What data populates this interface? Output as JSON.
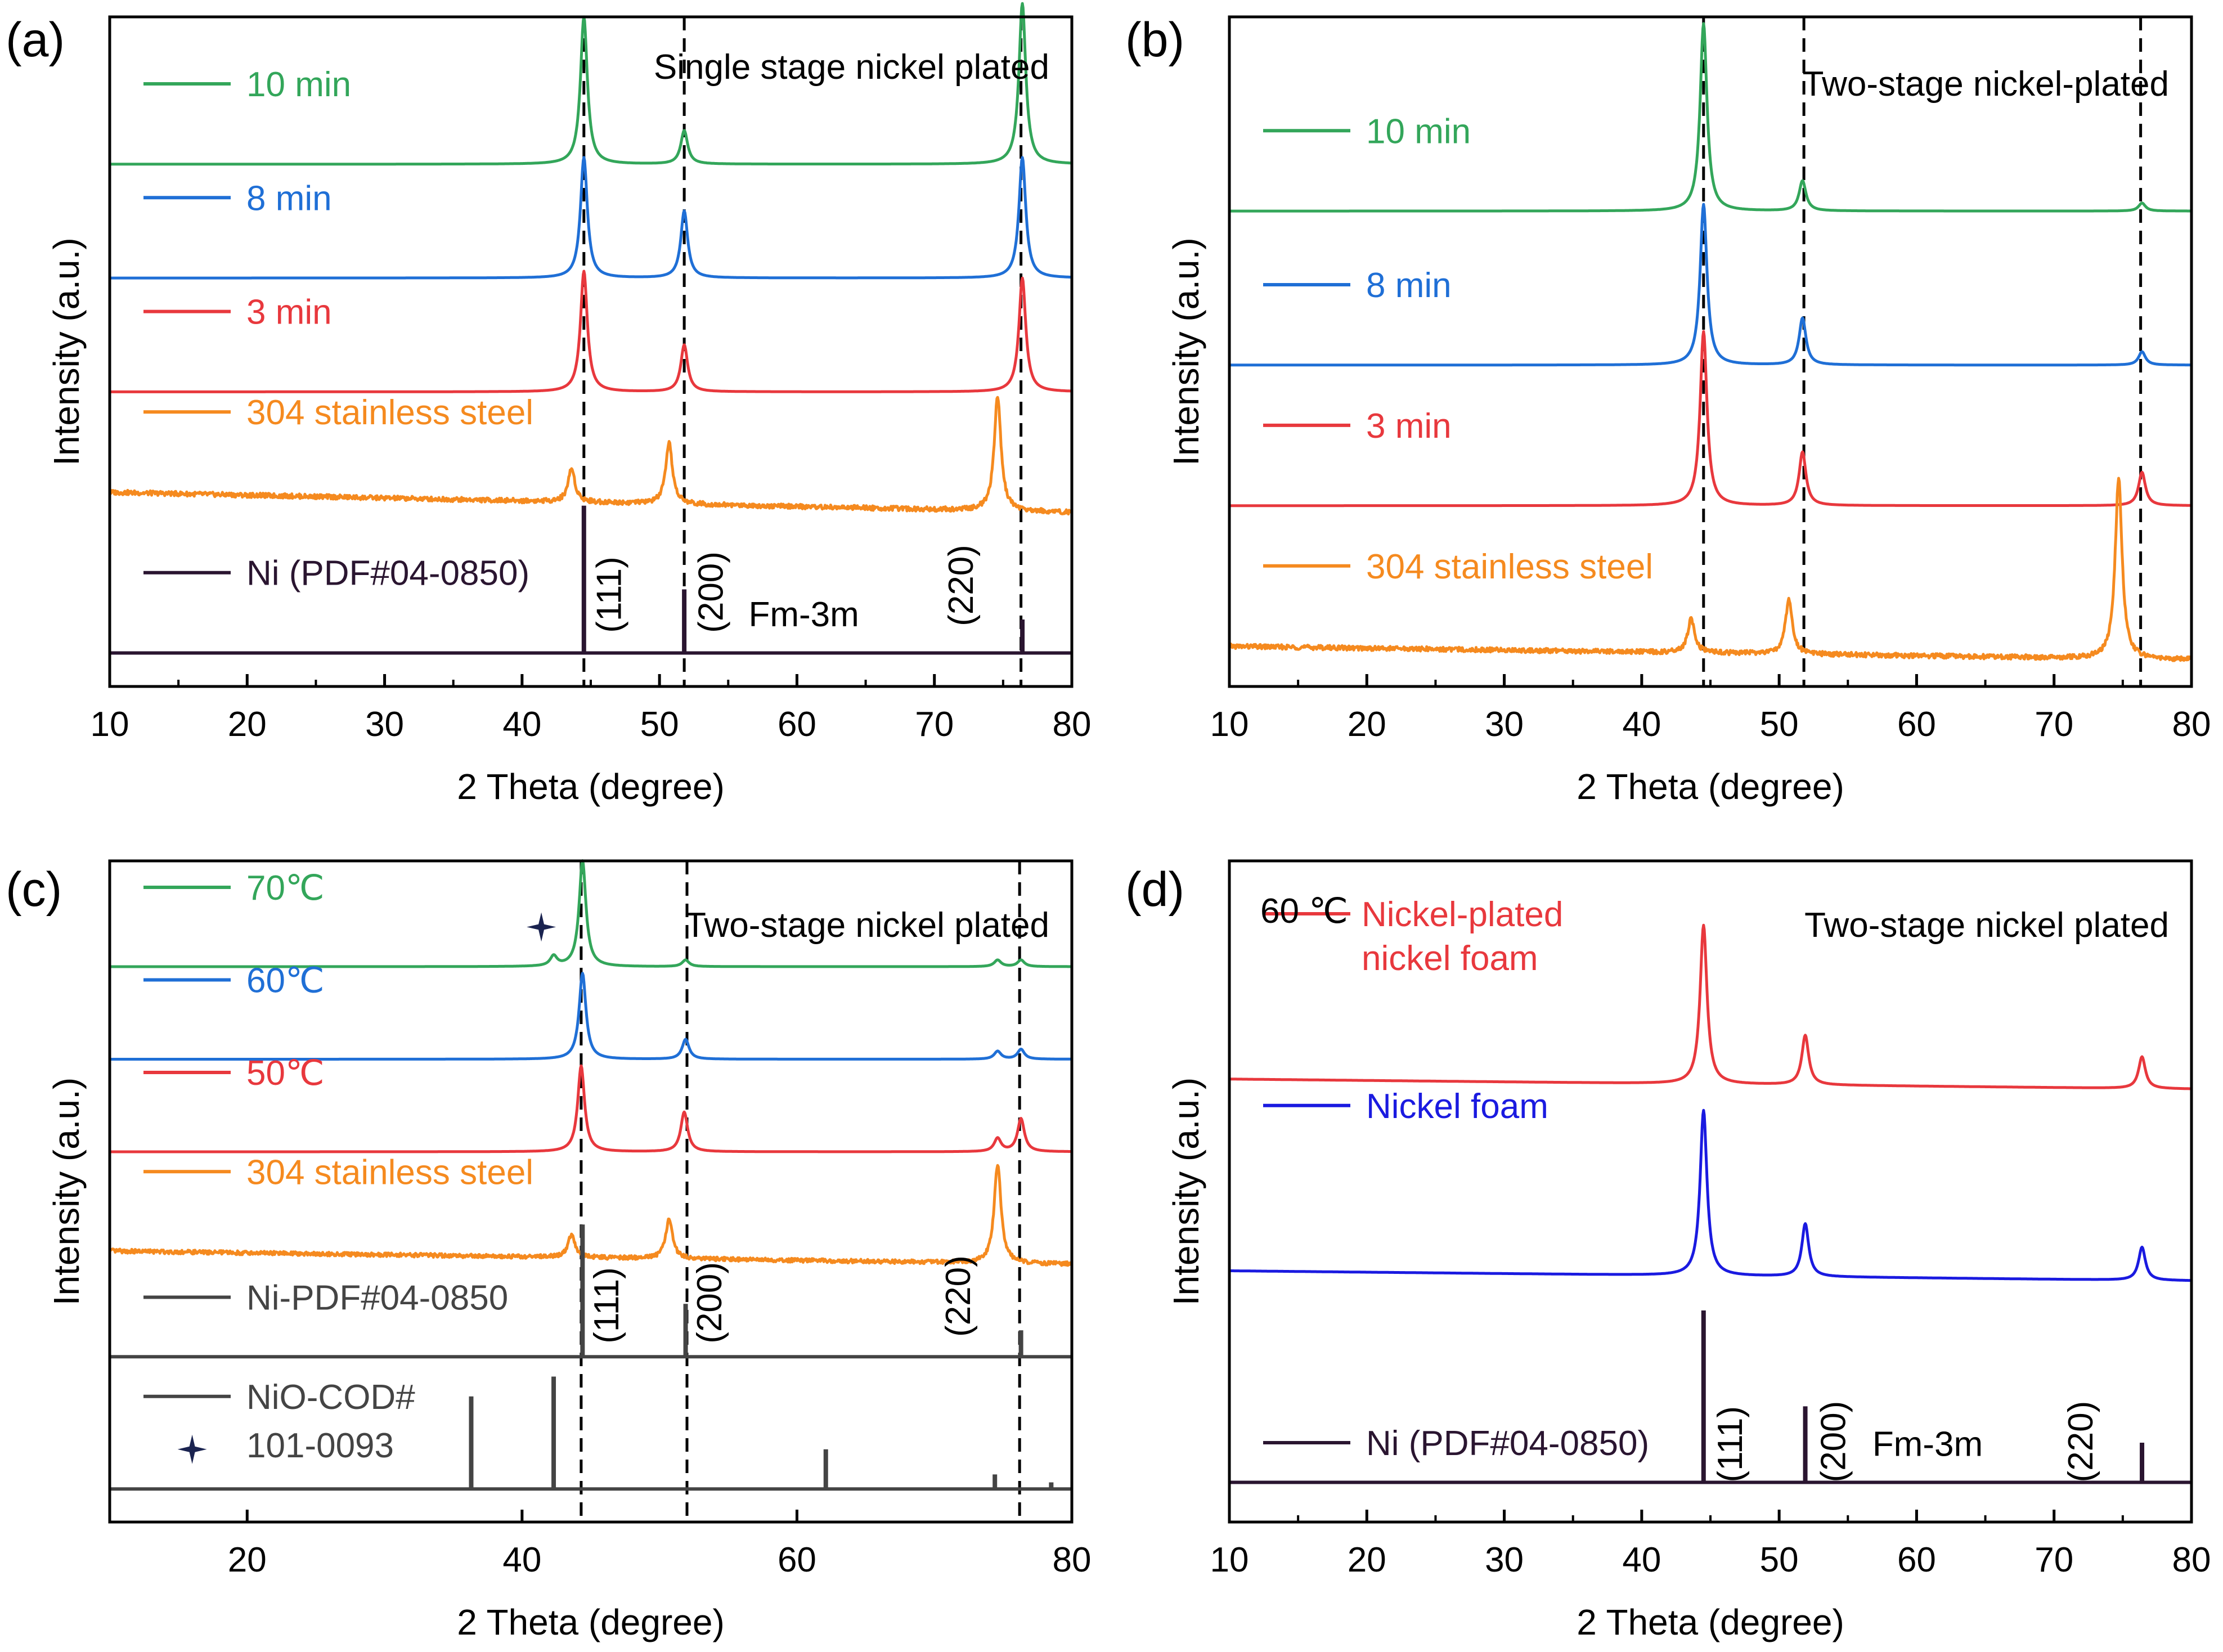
{
  "figure": {
    "colors": {
      "green": "#33a65a",
      "blue": "#1f6fd6",
      "red": "#e8383d",
      "orange": "#f58a1f",
      "ref": "#2a1530",
      "gray": "#444444",
      "blue_d": "#1a1ae0",
      "red_d": "#e8383d",
      "ref_d": "#2a1530"
    }
  },
  "chart_data": [
    {
      "panel": "(a)",
      "type": "line",
      "title": "Single stage nickel plated",
      "xlabel": "2 Theta (degree)",
      "ylabel": "Intensity (a.u.)",
      "xlim": [
        10,
        80
      ],
      "xticks": [
        10,
        20,
        30,
        40,
        50,
        60,
        70,
        80
      ],
      "xtick_labels": [
        "10",
        "20",
        "30",
        "40",
        "50",
        "60",
        "70",
        "80"
      ],
      "ylim": [
        0,
        100
      ],
      "dashed_lines_x": [
        44.5,
        51.8,
        76.3
      ],
      "series": [
        {
          "name": "10 min",
          "color": "green",
          "baseline": 78,
          "noise": 0,
          "peaks": [
            [
              44.5,
              22
            ],
            [
              51.8,
              5
            ],
            [
              76.4,
              24
            ]
          ]
        },
        {
          "name": "8 min",
          "color": "blue",
          "baseline": 61,
          "noise": 0,
          "peaks": [
            [
              44.5,
              18
            ],
            [
              51.8,
              10
            ],
            [
              76.4,
              18
            ]
          ]
        },
        {
          "name": "3 min",
          "color": "red",
          "baseline": 44,
          "noise": 0,
          "peaks": [
            [
              44.5,
              18
            ],
            [
              51.8,
              7
            ],
            [
              76.4,
              17
            ]
          ]
        },
        {
          "name": "304 stainless steel",
          "color": "orange",
          "baseline": 29,
          "slope": -3,
          "noise": 0.35,
          "peaks": [
            [
              43.6,
              5
            ],
            [
              50.7,
              9
            ],
            [
              74.6,
              17
            ]
          ]
        }
      ],
      "reference": {
        "name": "Ni (PDF#04-0850)",
        "color": "ref",
        "baseline": 5,
        "sticks": [
          [
            44.5,
            22
          ],
          [
            51.8,
            9.5
          ],
          [
            76.4,
            5
          ]
        ]
      },
      "annotations": [
        {
          "text": "(111)",
          "x": 47.2,
          "y": 8,
          "rotate": true
        },
        {
          "text": "(200)",
          "x": 54.6,
          "y": 8,
          "rotate": true
        },
        {
          "text": "(220)",
          "x": 72.8,
          "y": 9,
          "rotate": true
        },
        {
          "text": "Fm-3m",
          "x": 60.5,
          "y": 9,
          "rotate": false
        }
      ]
    },
    {
      "panel": "(b)",
      "type": "line",
      "title": "Two-stage nickel-plated",
      "xlabel": "2 Theta (degree)",
      "ylabel": "Intensity (a.u.)",
      "xlim": [
        10,
        80
      ],
      "xticks": [
        10,
        20,
        30,
        40,
        50,
        60,
        70,
        80
      ],
      "xtick_labels": [
        "10",
        "20",
        "30",
        "40",
        "50",
        "60",
        "70",
        "80"
      ],
      "ylim": [
        0,
        100
      ],
      "dashed_lines_x": [
        44.5,
        51.8,
        76.3
      ],
      "series": [
        {
          "name": "10 min",
          "color": "green",
          "baseline": 71,
          "noise": 0,
          "peaks": [
            [
              44.5,
              28
            ],
            [
              51.7,
              4.5
            ],
            [
              76.4,
              1.2
            ]
          ]
        },
        {
          "name": "8 min",
          "color": "blue",
          "baseline": 48,
          "noise": 0,
          "peaks": [
            [
              44.5,
              24
            ],
            [
              51.7,
              7
            ],
            [
              76.4,
              2
            ]
          ]
        },
        {
          "name": "3 min",
          "color": "red",
          "baseline": 27,
          "noise": 0,
          "peaks": [
            [
              44.5,
              26
            ],
            [
              51.7,
              8
            ],
            [
              76.4,
              5
            ]
          ]
        },
        {
          "name": "304 stainless steel",
          "color": "orange",
          "baseline": 6,
          "slope": -2,
          "noise": 0.35,
          "peaks": [
            [
              43.6,
              5
            ],
            [
              50.7,
              8
            ],
            [
              74.7,
              27
            ]
          ]
        }
      ],
      "reference": null,
      "annotations": []
    },
    {
      "panel": "(c)",
      "type": "line",
      "title": "Two-stage nickel plated",
      "xlabel": "2 Theta (degree)",
      "ylabel": "Intensity (a.u.)",
      "xlim": [
        10,
        80
      ],
      "xticks": [
        20,
        40,
        60,
        80
      ],
      "xtick_labels": [
        "20",
        "40",
        "60",
        "80"
      ],
      "ylim": [
        0,
        100
      ],
      "dashed_lines_x": [
        44.3,
        52.0,
        76.2
      ],
      "separator_y": 25,
      "series": [
        {
          "name": "70℃",
          "color": "green",
          "baseline": 84,
          "noise": 0,
          "peaks": [
            [
              42.3,
              1.5
            ],
            [
              44.4,
              16
            ],
            [
              51.9,
              1
            ],
            [
              74.6,
              1
            ],
            [
              76.3,
              1
            ]
          ]
        },
        {
          "name": "60℃",
          "color": "blue",
          "baseline": 70,
          "noise": 0,
          "peaks": [
            [
              44.4,
              13
            ],
            [
              51.9,
              3
            ],
            [
              74.6,
              1.2
            ],
            [
              76.3,
              1.5
            ]
          ]
        },
        {
          "name": "50℃",
          "color": "red",
          "baseline": 56,
          "noise": 0,
          "peaks": [
            [
              44.3,
              13
            ],
            [
              51.8,
              6
            ],
            [
              74.6,
              2
            ],
            [
              76.3,
              5
            ]
          ]
        },
        {
          "name": "304 stainless steel",
          "color": "orange",
          "baseline": 41,
          "slope": -2,
          "noise": 0.3,
          "peaks": [
            [
              43.6,
              3.5
            ],
            [
              50.7,
              6
            ],
            [
              74.6,
              15
            ]
          ]
        }
      ],
      "reference": {
        "name": "Ni-PDF#04-0850",
        "color": "gray",
        "baseline": 25,
        "sticks": [
          [
            44.4,
            20
          ],
          [
            51.9,
            8
          ],
          [
            76.3,
            4
          ]
        ]
      },
      "reference2": {
        "name_line1": "NiO-COD#",
        "name_line2": "101-0093",
        "color": "gray",
        "baseline": 5,
        "sticks": [
          [
            36.3,
            14
          ],
          [
            42.3,
            17
          ],
          [
            62.1,
            6
          ],
          [
            74.4,
            2.2
          ],
          [
            78.5,
            1
          ]
        ]
      },
      "stars": [
        {
          "x": 41.4,
          "y": 90
        },
        {
          "x": 16.0,
          "y": 11
        }
      ],
      "annotations": [
        {
          "text": "(111)",
          "x": 47.0,
          "y": 27,
          "rotate": true
        },
        {
          "text": "(200)",
          "x": 54.5,
          "y": 27,
          "rotate": true
        },
        {
          "text": "(220)",
          "x": 72.6,
          "y": 28,
          "rotate": true
        }
      ]
    },
    {
      "panel": "(d)",
      "type": "line",
      "title": "Two-stage nickel plated",
      "xlabel": "2 Theta (degree)",
      "ylabel": "Intensity (a.u.)",
      "xlim": [
        10,
        80
      ],
      "xticks": [
        10,
        20,
        30,
        40,
        50,
        60,
        70,
        80
      ],
      "xtick_labels": [
        "10",
        "20",
        "30",
        "40",
        "50",
        "60",
        "70",
        "80"
      ],
      "ylim": [
        0,
        100
      ],
      "temperature_label": "60 ℃",
      "dashed_lines_x": [],
      "series": [
        {
          "name_line1": "Nickel-plated",
          "name_line2": "nickel foam",
          "color": "red_d",
          "baseline": 67,
          "slope": -1.5,
          "noise": 0,
          "peaks": [
            [
              44.5,
              24
            ],
            [
              51.9,
              7.5
            ],
            [
              76.4,
              4.8
            ]
          ]
        },
        {
          "name": "Nickel foam",
          "color": "blue_d",
          "baseline": 38,
          "slope": -1.5,
          "noise": 0,
          "peaks": [
            [
              44.5,
              25
            ],
            [
              51.9,
              8
            ],
            [
              76.4,
              5
            ]
          ]
        }
      ],
      "reference": {
        "name": "Ni (PDF#04-0850)",
        "color": "ref_d",
        "baseline": 6,
        "sticks": [
          [
            44.5,
            26
          ],
          [
            51.9,
            11.5
          ],
          [
            76.4,
            6
          ]
        ]
      },
      "annotations": [
        {
          "text": "(111)",
          "x": 47.3,
          "y": 6,
          "rotate": true
        },
        {
          "text": "(200)",
          "x": 54.8,
          "y": 6,
          "rotate": true
        },
        {
          "text": "(220)",
          "x": 72.8,
          "y": 6,
          "rotate": true
        },
        {
          "text": "Fm-3m",
          "x": 60.8,
          "y": 10,
          "rotate": false
        }
      ]
    }
  ]
}
